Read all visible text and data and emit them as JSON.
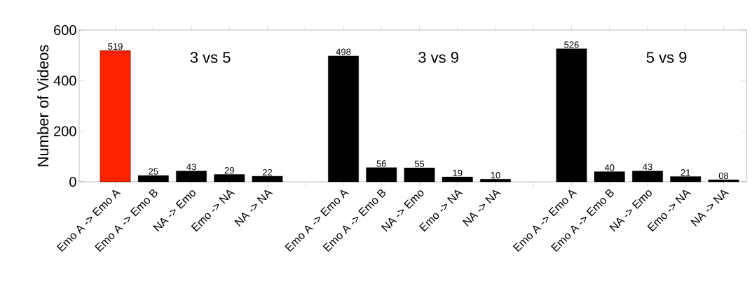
{
  "chart_data": {
    "type": "bar",
    "ylabel": "Number of Videos",
    "categories": [
      "Emo A -> Emo A",
      "Emo A -> Emo B",
      "NA -> Emo",
      "Emo -> NA",
      "NA -> NA",
      null,
      "Emo A -> Emo A",
      "Emo A -> Emo B",
      "NA -> Emo",
      "Emo -> NA",
      "NA -> NA",
      null,
      "Emo A -> Emo A",
      "Emo A -> Emo B",
      "NA -> Emo",
      "Emo -> NA",
      "NA -> NA"
    ],
    "values": [
      519,
      25,
      43,
      29,
      22,
      null,
      498,
      56,
      55,
      19,
      10,
      null,
      526,
      40,
      43,
      21,
      8
    ],
    "value_labels": [
      "519",
      "25",
      "43",
      "29",
      "22",
      null,
      "498",
      "56",
      "55",
      "19",
      "10",
      null,
      "526",
      "40",
      "43",
      "21",
      "08"
    ],
    "colors": [
      "#ff2200",
      "#000000",
      "#000000",
      "#000000",
      "#000000",
      "#000000",
      "#000000",
      "#000000",
      "#000000",
      "#000000",
      "#000000",
      "#000000",
      "#000000",
      "#000000",
      "#000000",
      "#000000",
      "#000000"
    ],
    "ylim": [
      0,
      600
    ],
    "yticks": [
      0,
      200,
      400,
      600
    ],
    "annotations": [
      "3 vs 5",
      "3 vs 9",
      "5 vs 9"
    ]
  }
}
